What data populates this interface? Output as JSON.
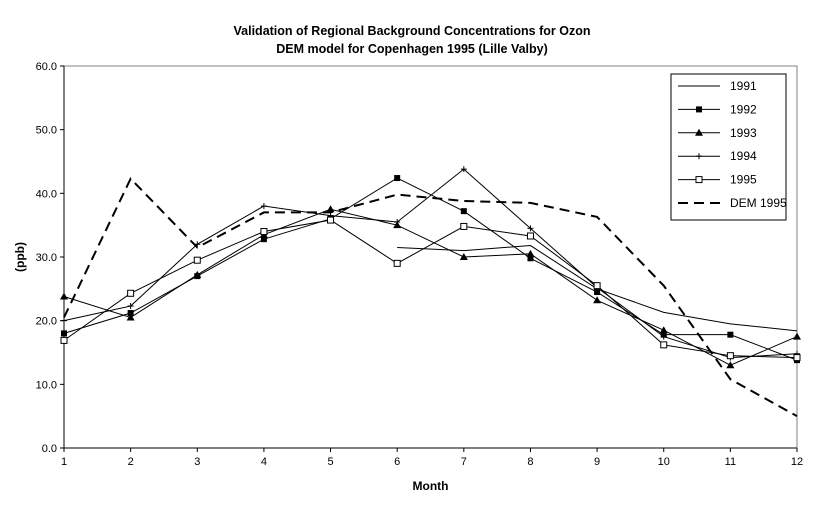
{
  "chart_data": {
    "type": "line",
    "title": "Validation of Regional Background Concentrations for Ozon",
    "subtitle": "DEM model for Copenhagen 1995 (Lille Valby)",
    "xlabel": "Month",
    "ylabel": "(ppb)",
    "x": [
      1,
      2,
      3,
      4,
      5,
      6,
      7,
      8,
      9,
      10,
      11,
      12
    ],
    "xlim": [
      1,
      12
    ],
    "ylim": [
      0,
      60
    ],
    "yticks": [
      "0.0",
      "10.0",
      "20.0",
      "30.0",
      "40.0",
      "50.0",
      "60.0"
    ],
    "grid": false,
    "legend_position": "top-right",
    "series": [
      {
        "name": "1991",
        "marker": "none",
        "dash": "solid",
        "values": [
          null,
          null,
          null,
          null,
          null,
          31.5,
          31.0,
          31.8,
          25.0,
          21.3,
          19.5,
          18.4
        ]
      },
      {
        "name": "1992",
        "marker": "square-filled",
        "dash": "solid",
        "values": [
          18.0,
          21.2,
          27.0,
          32.8,
          36.0,
          42.4,
          37.2,
          29.8,
          24.5,
          17.8,
          17.8,
          13.8
        ]
      },
      {
        "name": "1993",
        "marker": "triangle-filled",
        "dash": "solid",
        "values": [
          23.8,
          20.5,
          27.2,
          33.5,
          37.5,
          35.0,
          30.0,
          30.5,
          23.2,
          18.5,
          13.0,
          17.5
        ]
      },
      {
        "name": "1994",
        "marker": "plus",
        "dash": "solid",
        "values": [
          20.0,
          22.3,
          32.0,
          38.0,
          36.5,
          35.5,
          43.8,
          34.5,
          25.2,
          17.5,
          14.2,
          14.8
        ]
      },
      {
        "name": "1995",
        "marker": "square-open",
        "dash": "solid",
        "values": [
          16.9,
          24.3,
          29.5,
          34.0,
          35.8,
          29.0,
          34.8,
          33.3,
          25.5,
          16.2,
          14.5,
          14.2
        ]
      },
      {
        "name": "DEM 1995",
        "marker": "none",
        "dash": "dashed",
        "values": [
          20.5,
          42.3,
          31.5,
          37.0,
          37.0,
          39.8,
          38.8,
          38.5,
          36.3,
          25.5,
          10.8,
          5.0
        ]
      }
    ]
  }
}
